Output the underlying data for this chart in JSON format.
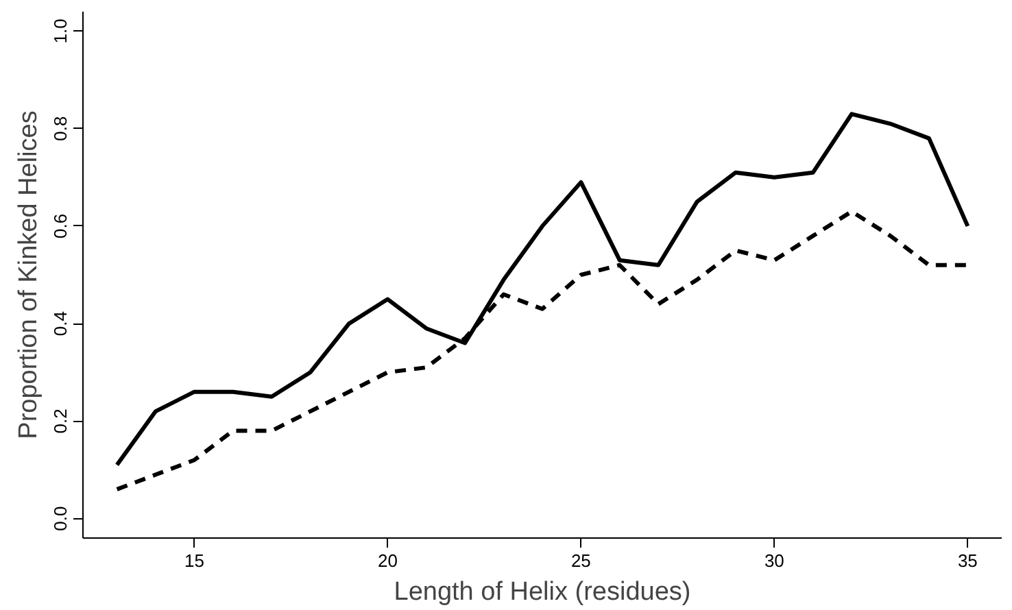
{
  "chart_data": {
    "type": "line",
    "xlabel": "Length of Helix (residues)",
    "ylabel": "Proportion of Kinked Helices",
    "x": [
      13,
      14,
      15,
      16,
      17,
      18,
      19,
      20,
      21,
      22,
      23,
      24,
      25,
      26,
      27,
      28,
      29,
      30,
      31,
      32,
      33,
      34,
      35
    ],
    "series": [
      {
        "color": "#000000",
        "line_style": "solid",
        "values": [
          0.11,
          0.22,
          0.26,
          0.26,
          0.25,
          0.3,
          0.4,
          0.45,
          0.39,
          0.36,
          0.49,
          0.6,
          0.69,
          0.53,
          0.52,
          0.65,
          0.71,
          0.7,
          0.71,
          0.83,
          0.81,
          0.78,
          0.6
        ]
      },
      {
        "color": "#000000",
        "line_style": "dashed",
        "values": [
          0.06,
          0.09,
          0.12,
          0.18,
          0.18,
          0.22,
          0.26,
          0.3,
          0.31,
          0.37,
          0.46,
          0.43,
          0.5,
          0.52,
          0.44,
          0.49,
          0.55,
          0.53,
          0.58,
          0.63,
          0.58,
          0.52,
          0.52
        ]
      }
    ],
    "xlim": [
      12.12,
      35.88
    ],
    "ylim": [
      -0.04,
      1.04
    ],
    "xticks": [
      15,
      20,
      25,
      30,
      35
    ],
    "yticks": [
      {
        "value": 0,
        "label": "0.0"
      },
      {
        "value": 0.2,
        "label": "0.2"
      },
      {
        "value": 0.4,
        "label": "0.4"
      },
      {
        "value": 0.6,
        "label": "0.6"
      },
      {
        "value": 0.8,
        "label": "0.8"
      },
      {
        "value": 1,
        "label": "1.0"
      }
    ]
  }
}
